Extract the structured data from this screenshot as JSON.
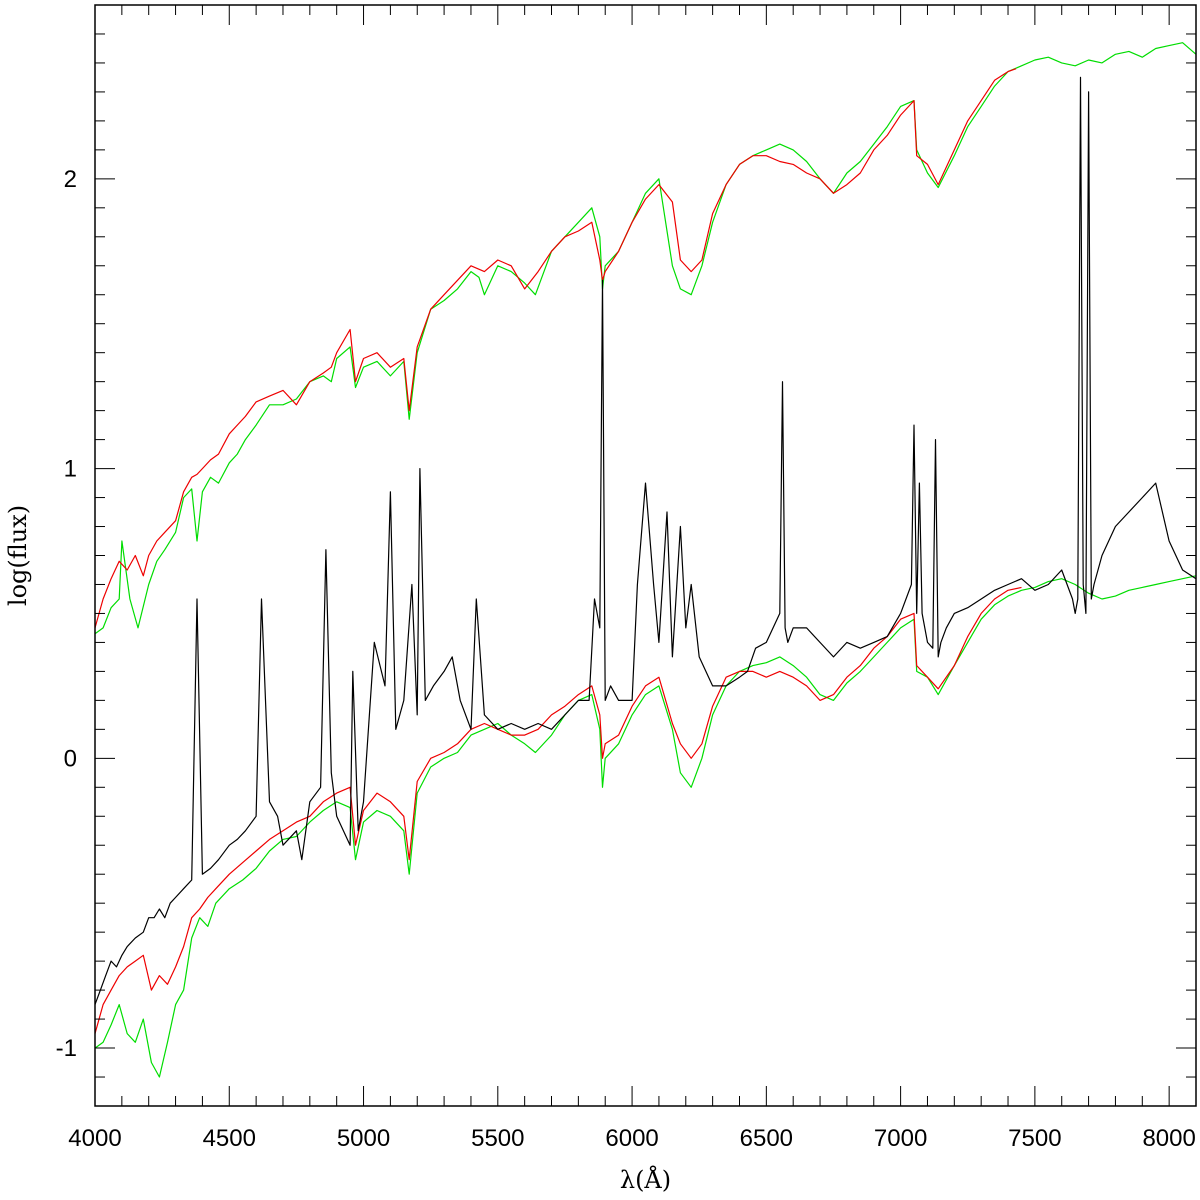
{
  "chart_data": {
    "type": "line",
    "title": "",
    "xlabel": "λ(Å)",
    "ylabel": "log(flux)",
    "xlim": [
      4000,
      8100
    ],
    "ylim": [
      -1.2,
      2.6
    ],
    "x_ticks": [
      4000,
      4500,
      5000,
      5500,
      6000,
      6500,
      7000,
      7500,
      8000
    ],
    "x_tick_labels": [
      "4000",
      "4500",
      "5000",
      "5500",
      "6000",
      "6500",
      "7000",
      "7500",
      "8000"
    ],
    "y_ticks": [
      -1,
      0,
      1,
      2
    ],
    "y_tick_labels": [
      "-1",
      "0",
      "1",
      "2"
    ],
    "grid": false,
    "legend": "none",
    "series": [
      {
        "color": "#00dd00",
        "x": [
          4000,
          4030,
          4060,
          4090,
          4100,
          4130,
          4160,
          4200,
          4230,
          4260,
          4300,
          4330,
          4360,
          4380,
          4400,
          4430,
          4460,
          4500,
          4530,
          4560,
          4600,
          4650,
          4700,
          4750,
          4800,
          4850,
          4880,
          4900,
          4950,
          4970,
          5000,
          5050,
          5100,
          5150,
          5170,
          5200,
          5250,
          5300,
          5350,
          5400,
          5430,
          5450,
          5500,
          5550,
          5600,
          5640,
          5700,
          5750,
          5800,
          5850,
          5880,
          5890,
          5900,
          5950,
          6000,
          6050,
          6100,
          6150,
          6180,
          6220,
          6260,
          6300,
          6350,
          6400,
          6450,
          6500,
          6550,
          6600,
          6650,
          6700,
          6750,
          6800,
          6850,
          6900,
          6950,
          7000,
          7050,
          7060,
          7100,
          7140,
          7200,
          7250,
          7300,
          7350,
          7400,
          7450,
          7500,
          7550,
          7600,
          7650,
          7700,
          7750,
          7800,
          7850,
          7900,
          7950,
          8000,
          8050,
          8100
        ],
        "y": [
          0.43,
          0.45,
          0.52,
          0.55,
          0.75,
          0.55,
          0.45,
          0.6,
          0.68,
          0.72,
          0.78,
          0.9,
          0.93,
          0.75,
          0.92,
          0.97,
          0.95,
          1.02,
          1.05,
          1.1,
          1.15,
          1.22,
          1.22,
          1.24,
          1.3,
          1.32,
          1.3,
          1.38,
          1.42,
          1.28,
          1.35,
          1.37,
          1.32,
          1.37,
          1.17,
          1.4,
          1.55,
          1.58,
          1.62,
          1.68,
          1.66,
          1.6,
          1.7,
          1.68,
          1.64,
          1.6,
          1.75,
          1.8,
          1.85,
          1.9,
          1.8,
          1.62,
          1.7,
          1.75,
          1.85,
          1.95,
          2.0,
          1.7,
          1.62,
          1.6,
          1.7,
          1.85,
          1.98,
          2.05,
          2.08,
          2.1,
          2.12,
          2.1,
          2.06,
          2.0,
          1.95,
          2.02,
          2.06,
          2.12,
          2.18,
          2.25,
          2.27,
          2.1,
          2.02,
          1.97,
          2.08,
          2.18,
          2.25,
          2.32,
          2.37,
          2.39,
          2.41,
          2.42,
          2.4,
          2.39,
          2.41,
          2.4,
          2.43,
          2.44,
          2.42,
          2.45,
          2.46,
          2.47,
          2.43
        ]
      },
      {
        "color": "#ee0000",
        "x": [
          4000,
          4030,
          4060,
          4090,
          4120,
          4150,
          4180,
          4200,
          4230,
          4260,
          4300,
          4330,
          4360,
          4380,
          4400,
          4430,
          4460,
          4500,
          4530,
          4560,
          4600,
          4650,
          4700,
          4750,
          4800,
          4850,
          4880,
          4900,
          4950,
          4970,
          5000,
          5050,
          5100,
          5150,
          5170,
          5200,
          5250,
          5300,
          5350,
          5400,
          5450,
          5500,
          5550,
          5600,
          5650,
          5700,
          5750,
          5800,
          5850,
          5880,
          5890,
          5900,
          5950,
          6000,
          6050,
          6100,
          6150,
          6180,
          6220,
          6260,
          6300,
          6350,
          6400,
          6450,
          6500,
          6550,
          6600,
          6650,
          6700,
          6750,
          6800,
          6850,
          6900,
          6950,
          7000,
          7050,
          7060,
          7100,
          7140,
          7200,
          7250,
          7300,
          7350,
          7400,
          7430
        ],
        "y": [
          0.45,
          0.55,
          0.62,
          0.68,
          0.65,
          0.7,
          0.63,
          0.7,
          0.75,
          0.78,
          0.82,
          0.92,
          0.97,
          0.98,
          1.0,
          1.03,
          1.05,
          1.12,
          1.15,
          1.18,
          1.23,
          1.25,
          1.27,
          1.22,
          1.3,
          1.33,
          1.35,
          1.4,
          1.48,
          1.3,
          1.38,
          1.4,
          1.35,
          1.38,
          1.2,
          1.42,
          1.55,
          1.6,
          1.65,
          1.7,
          1.68,
          1.72,
          1.7,
          1.62,
          1.68,
          1.75,
          1.8,
          1.82,
          1.85,
          1.72,
          1.65,
          1.68,
          1.75,
          1.85,
          1.93,
          1.98,
          1.92,
          1.72,
          1.68,
          1.72,
          1.88,
          1.98,
          2.05,
          2.08,
          2.08,
          2.06,
          2.05,
          2.02,
          2.0,
          1.95,
          1.98,
          2.02,
          2.1,
          2.15,
          2.22,
          2.27,
          2.08,
          2.05,
          1.98,
          2.1,
          2.2,
          2.27,
          2.34,
          2.37,
          2.38
        ]
      },
      {
        "color": "#00dd00",
        "x": [
          4000,
          4030,
          4060,
          4090,
          4120,
          4150,
          4180,
          4210,
          4240,
          4270,
          4300,
          4330,
          4360,
          4390,
          4420,
          4450,
          4500,
          4550,
          4600,
          4650,
          4700,
          4750,
          4800,
          4850,
          4900,
          4950,
          4970,
          5000,
          5050,
          5100,
          5150,
          5170,
          5200,
          5250,
          5300,
          5350,
          5400,
          5450,
          5500,
          5550,
          5600,
          5640,
          5700,
          5750,
          5800,
          5850,
          5880,
          5890,
          5900,
          5950,
          6000,
          6050,
          6100,
          6150,
          6180,
          6220,
          6260,
          6300,
          6350,
          6400,
          6450,
          6500,
          6550,
          6600,
          6650,
          6700,
          6750,
          6800,
          6850,
          6900,
          6950,
          7000,
          7050,
          7060,
          7100,
          7140,
          7200,
          7250,
          7300,
          7350,
          7400,
          7450,
          7500,
          7550,
          7600,
          7650,
          7700,
          7750,
          7800,
          7850,
          7900,
          7950,
          8000,
          8050,
          8100
        ],
        "y": [
          -1.0,
          -0.98,
          -0.92,
          -0.85,
          -0.95,
          -0.98,
          -0.9,
          -1.05,
          -1.1,
          -0.98,
          -0.85,
          -0.8,
          -0.62,
          -0.55,
          -0.58,
          -0.5,
          -0.45,
          -0.42,
          -0.38,
          -0.32,
          -0.28,
          -0.27,
          -0.22,
          -0.18,
          -0.15,
          -0.17,
          -0.35,
          -0.22,
          -0.18,
          -0.2,
          -0.25,
          -0.4,
          -0.12,
          -0.03,
          0.0,
          0.02,
          0.08,
          0.1,
          0.12,
          0.08,
          0.05,
          0.02,
          0.08,
          0.15,
          0.2,
          0.22,
          0.1,
          -0.1,
          0.0,
          0.05,
          0.15,
          0.22,
          0.25,
          0.1,
          -0.05,
          -0.1,
          0.0,
          0.15,
          0.25,
          0.3,
          0.32,
          0.33,
          0.35,
          0.32,
          0.28,
          0.22,
          0.2,
          0.26,
          0.3,
          0.35,
          0.4,
          0.45,
          0.48,
          0.3,
          0.28,
          0.22,
          0.32,
          0.4,
          0.48,
          0.53,
          0.56,
          0.58,
          0.59,
          0.61,
          0.62,
          0.6,
          0.57,
          0.55,
          0.56,
          0.58,
          0.59,
          0.6,
          0.61,
          0.62,
          0.63
        ]
      },
      {
        "color": "#ee0000",
        "x": [
          4000,
          4030,
          4060,
          4090,
          4120,
          4150,
          4180,
          4210,
          4240,
          4270,
          4300,
          4330,
          4360,
          4390,
          4420,
          4450,
          4500,
          4550,
          4600,
          4650,
          4700,
          4750,
          4800,
          4850,
          4900,
          4950,
          4970,
          5000,
          5050,
          5100,
          5150,
          5170,
          5200,
          5250,
          5300,
          5350,
          5400,
          5450,
          5500,
          5550,
          5600,
          5650,
          5700,
          5750,
          5800,
          5850,
          5880,
          5890,
          5900,
          5950,
          6000,
          6050,
          6100,
          6150,
          6180,
          6220,
          6260,
          6300,
          6350,
          6400,
          6450,
          6500,
          6550,
          6600,
          6650,
          6700,
          6750,
          6800,
          6850,
          6900,
          6950,
          7000,
          7050,
          7060,
          7100,
          7140,
          7200,
          7250,
          7300,
          7350,
          7400,
          7450
        ],
        "y": [
          -0.95,
          -0.85,
          -0.8,
          -0.75,
          -0.72,
          -0.7,
          -0.68,
          -0.8,
          -0.75,
          -0.78,
          -0.72,
          -0.65,
          -0.55,
          -0.52,
          -0.48,
          -0.45,
          -0.4,
          -0.36,
          -0.32,
          -0.28,
          -0.25,
          -0.22,
          -0.2,
          -0.15,
          -0.12,
          -0.1,
          -0.3,
          -0.18,
          -0.12,
          -0.15,
          -0.2,
          -0.35,
          -0.08,
          0.0,
          0.02,
          0.05,
          0.1,
          0.12,
          0.1,
          0.08,
          0.08,
          0.1,
          0.15,
          0.18,
          0.22,
          0.25,
          0.15,
          0.0,
          0.05,
          0.08,
          0.18,
          0.25,
          0.28,
          0.12,
          0.05,
          0.0,
          0.05,
          0.18,
          0.28,
          0.3,
          0.3,
          0.28,
          0.3,
          0.28,
          0.25,
          0.2,
          0.22,
          0.28,
          0.32,
          0.38,
          0.42,
          0.48,
          0.5,
          0.32,
          0.28,
          0.24,
          0.32,
          0.42,
          0.5,
          0.55,
          0.58,
          0.59
        ]
      },
      {
        "color": "#000000",
        "x": [
          4000,
          4020,
          4040,
          4060,
          4080,
          4100,
          4120,
          4150,
          4180,
          4200,
          4220,
          4240,
          4260,
          4280,
          4300,
          4330,
          4360,
          4380,
          4400,
          4430,
          4460,
          4500,
          4530,
          4560,
          4600,
          4620,
          4650,
          4680,
          4700,
          4750,
          4770,
          4800,
          4840,
          4860,
          4880,
          4900,
          4950,
          4960,
          4980,
          5000,
          5040,
          5080,
          5100,
          5120,
          5150,
          5180,
          5200,
          5210,
          5230,
          5260,
          5300,
          5330,
          5360,
          5400,
          5420,
          5450,
          5480,
          5500,
          5550,
          5600,
          5650,
          5700,
          5750,
          5800,
          5840,
          5860,
          5880,
          5890,
          5900,
          5920,
          5950,
          6000,
          6020,
          6050,
          6080,
          6100,
          6130,
          6150,
          6180,
          6200,
          6220,
          6250,
          6300,
          6350,
          6400,
          6430,
          6460,
          6500,
          6550,
          6560,
          6570,
          6580,
          6600,
          6650,
          6700,
          6750,
          6800,
          6850,
          6900,
          6950,
          7000,
          7040,
          7050,
          7060,
          7070,
          7080,
          7100,
          7120,
          7130,
          7140,
          7150,
          7170,
          7200,
          7250,
          7300,
          7350,
          7400,
          7450,
          7500,
          7550,
          7600,
          7640,
          7650,
          7660,
          7670,
          7680,
          7690,
          7700,
          7710,
          7720,
          7750,
          7800,
          7850,
          7900,
          7950,
          8000,
          8050,
          8100
        ],
        "y": [
          -0.85,
          -0.8,
          -0.75,
          -0.7,
          -0.72,
          -0.68,
          -0.65,
          -0.62,
          -0.6,
          -0.55,
          -0.55,
          -0.52,
          -0.55,
          -0.5,
          -0.48,
          -0.45,
          -0.42,
          0.55,
          -0.4,
          -0.38,
          -0.35,
          -0.3,
          -0.28,
          -0.25,
          -0.2,
          0.55,
          -0.15,
          -0.2,
          -0.3,
          -0.25,
          -0.35,
          -0.15,
          -0.1,
          0.72,
          -0.05,
          -0.2,
          -0.3,
          0.3,
          -0.25,
          -0.15,
          0.4,
          0.25,
          0.92,
          0.1,
          0.2,
          0.6,
          0.15,
          1.0,
          0.2,
          0.25,
          0.3,
          0.35,
          0.2,
          0.1,
          0.55,
          0.15,
          0.12,
          0.1,
          0.12,
          0.1,
          0.12,
          0.1,
          0.15,
          0.2,
          0.2,
          0.55,
          0.45,
          1.65,
          0.2,
          0.25,
          0.2,
          0.2,
          0.6,
          0.95,
          0.6,
          0.4,
          0.85,
          0.35,
          0.8,
          0.45,
          0.6,
          0.35,
          0.25,
          0.25,
          0.28,
          0.3,
          0.38,
          0.4,
          0.5,
          1.3,
          0.45,
          0.4,
          0.45,
          0.45,
          0.4,
          0.35,
          0.4,
          0.38,
          0.4,
          0.42,
          0.5,
          0.6,
          1.15,
          0.5,
          0.95,
          0.5,
          0.4,
          0.38,
          1.1,
          0.35,
          0.4,
          0.45,
          0.5,
          0.52,
          0.55,
          0.58,
          0.6,
          0.62,
          0.58,
          0.6,
          0.65,
          0.55,
          0.5,
          0.55,
          2.35,
          0.6,
          0.5,
          2.3,
          0.55,
          0.6,
          0.7,
          0.8,
          0.85,
          0.9,
          0.95,
          0.75,
          0.65,
          0.62
        ]
      }
    ]
  }
}
